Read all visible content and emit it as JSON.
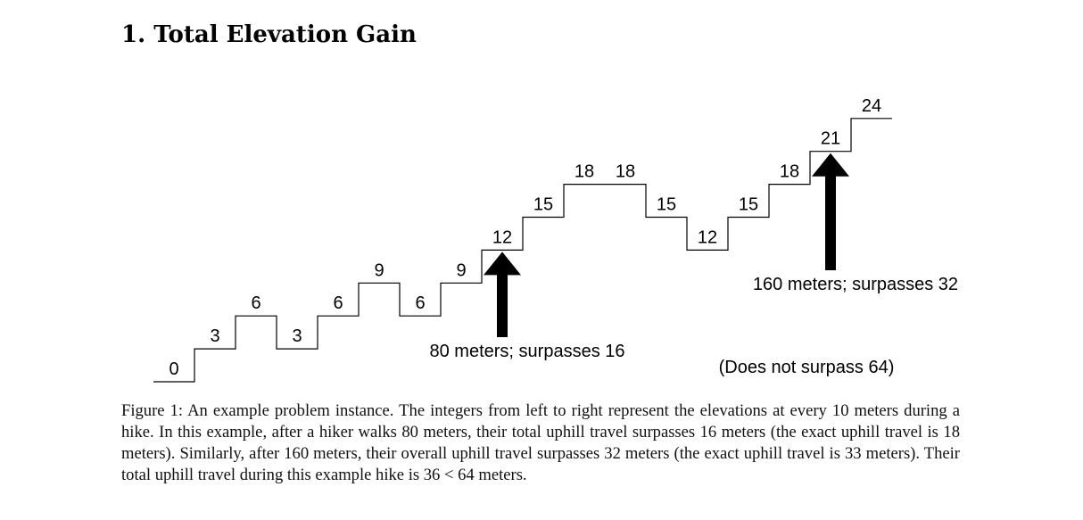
{
  "section_title": "1. Total Elevation Gain",
  "elevations": [
    0,
    3,
    6,
    3,
    6,
    9,
    6,
    9,
    12,
    15,
    18,
    18,
    15,
    12,
    15,
    18,
    21,
    24
  ],
  "markers": [
    {
      "after_index": 8,
      "label": "80 meters; surpasses 16"
    },
    {
      "after_index": 16,
      "label": "160 meters; surpasses 32"
    }
  ],
  "extra_note": "(Does not surpass 64)",
  "caption": "Figure 1: An example problem instance. The integers from left to right represent the elevations at every 10 meters during a hike. In this example, after a hiker walks 80 meters, their total uphill travel surpasses 16 meters (the exact uphill travel is 18 meters). Similarly, after 160 meters, their overall uphill travel surpasses 32 meters (the exact uphill travel is 33 meters). Their total uphill travel during this example hike is 36 < 64 meters."
}
